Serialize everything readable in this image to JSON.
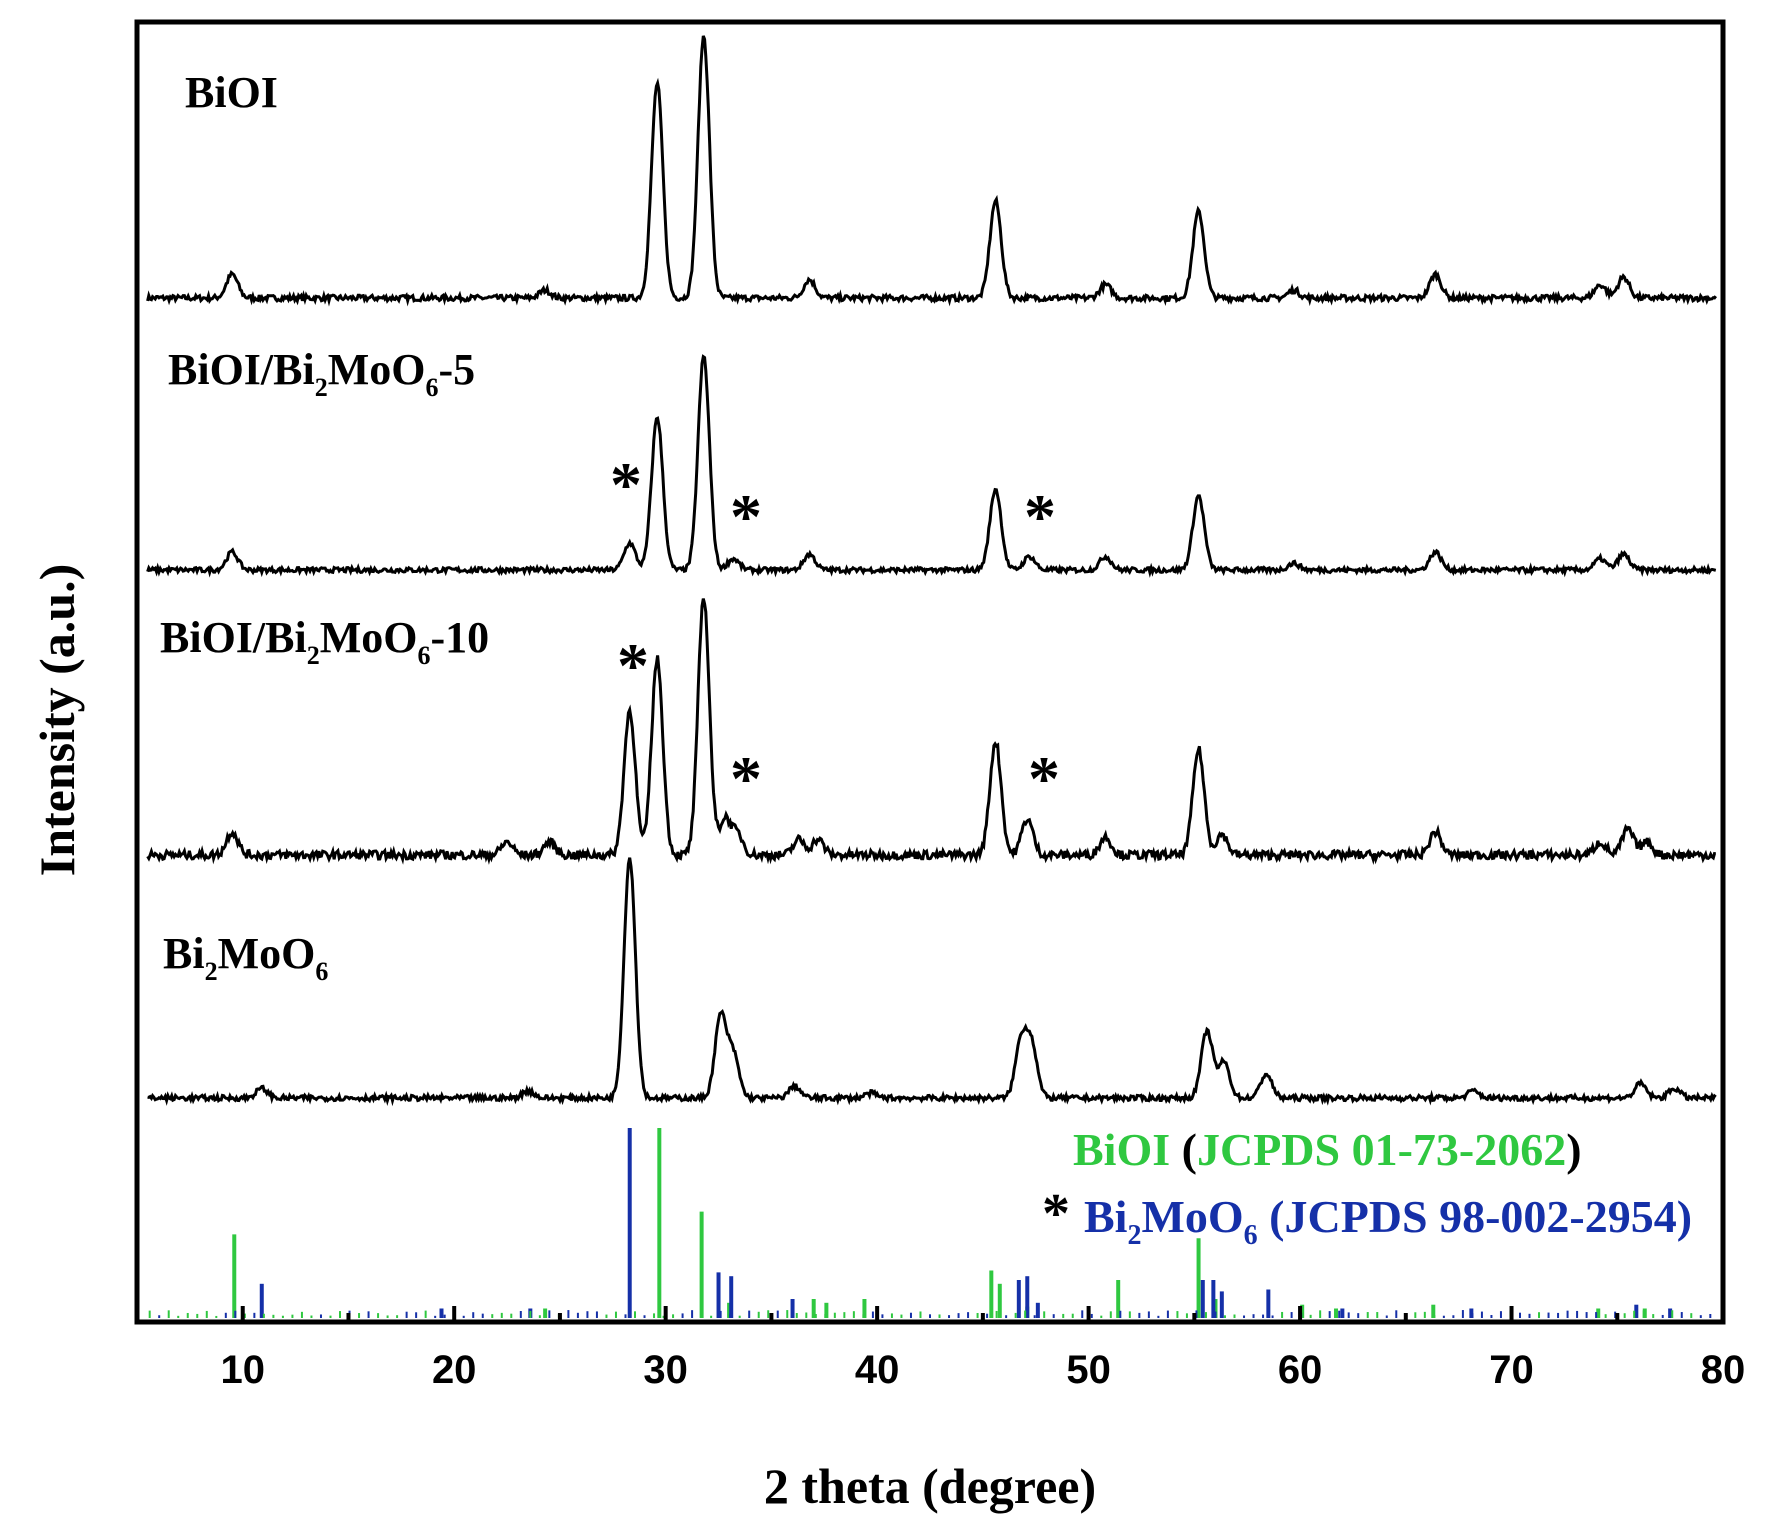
{
  "chart_data": {
    "type": "line",
    "xlabel": "2 theta (degree)",
    "ylabel": "Intensity (a.u.)",
    "xlim": [
      5,
      80
    ],
    "x_ticks": [
      10,
      20,
      30,
      40,
      50,
      60,
      70,
      80
    ],
    "y_ticks_shown": false,
    "grid": false,
    "legend_placement": "bottom-right",
    "series": [
      {
        "name_parts": [
          {
            "t": "BiOI"
          }
        ],
        "peaks": [
          [
            9.5,
            0.09
          ],
          [
            24.3,
            0.03
          ],
          [
            29.6,
            0.82
          ],
          [
            31.8,
            1.0
          ],
          [
            36.8,
            0.07
          ],
          [
            45.6,
            0.37
          ],
          [
            50.8,
            0.05
          ],
          [
            55.2,
            0.33
          ],
          [
            59.7,
            0.03
          ],
          [
            66.4,
            0.09
          ],
          [
            74.2,
            0.05
          ],
          [
            75.3,
            0.08
          ]
        ]
      },
      {
        "name_parts": [
          {
            "t": "BiOI/Bi"
          },
          {
            "t": "2",
            "sub": true
          },
          {
            "t": "MoO"
          },
          {
            "t": "6",
            "sub": true
          },
          {
            "t": "-5"
          }
        ],
        "peaks": [
          [
            9.5,
            0.08
          ],
          [
            28.3,
            0.12
          ],
          [
            29.6,
            0.68
          ],
          [
            31.8,
            0.95
          ],
          [
            33.2,
            0.05
          ],
          [
            36.8,
            0.07
          ],
          [
            45.6,
            0.36
          ],
          [
            47.2,
            0.06
          ],
          [
            50.8,
            0.06
          ],
          [
            55.2,
            0.33
          ],
          [
            59.7,
            0.03
          ],
          [
            66.4,
            0.08
          ],
          [
            74.2,
            0.05
          ],
          [
            75.3,
            0.07
          ]
        ]
      },
      {
        "name_parts": [
          {
            "t": "BiOI/Bi"
          },
          {
            "t": "2",
            "sub": true
          },
          {
            "t": "MoO"
          },
          {
            "t": "6",
            "sub": true
          },
          {
            "t": "-10"
          }
        ],
        "peaks": [
          [
            9.5,
            0.09
          ],
          [
            22.5,
            0.05
          ],
          [
            24.5,
            0.05
          ],
          [
            28.3,
            0.56
          ],
          [
            29.6,
            0.76
          ],
          [
            31.8,
            1.0
          ],
          [
            32.8,
            0.14
          ],
          [
            33.4,
            0.08
          ],
          [
            36.3,
            0.06
          ],
          [
            37.2,
            0.06
          ],
          [
            45.6,
            0.44
          ],
          [
            47.1,
            0.14
          ],
          [
            50.8,
            0.07
          ],
          [
            55.2,
            0.41
          ],
          [
            56.3,
            0.08
          ],
          [
            66.4,
            0.09
          ],
          [
            74.2,
            0.05
          ],
          [
            75.5,
            0.1
          ],
          [
            76.4,
            0.05
          ]
        ]
      },
      {
        "name_parts": [
          {
            "t": "Bi"
          },
          {
            "t": "2",
            "sub": true
          },
          {
            "t": "MoO"
          },
          {
            "t": "6",
            "sub": true
          }
        ],
        "peaks": [
          [
            10.9,
            0.04
          ],
          [
            23.5,
            0.03
          ],
          [
            28.3,
            1.0
          ],
          [
            32.6,
            0.34
          ],
          [
            33.2,
            0.18
          ],
          [
            36.1,
            0.05
          ],
          [
            39.7,
            0.02
          ],
          [
            46.8,
            0.23
          ],
          [
            47.3,
            0.22
          ],
          [
            55.6,
            0.28
          ],
          [
            56.4,
            0.15
          ],
          [
            58.4,
            0.1
          ],
          [
            68.2,
            0.03
          ],
          [
            76.1,
            0.06
          ],
          [
            77.7,
            0.04
          ]
        ]
      }
    ],
    "reference_lines": [
      {
        "label_prefix": "",
        "label_parts": [
          {
            "t": "BiOI",
            "c": "green"
          },
          {
            "t": " (",
            "c": "black"
          },
          {
            "t": "JCPDS 01-73-2062",
            "c": "green"
          },
          {
            "t": ")",
            "c": "black"
          }
        ],
        "color": "#2fc840",
        "lines": [
          [
            9.6,
            0.44
          ],
          [
            24.3,
            0.05
          ],
          [
            29.7,
            1.0
          ],
          [
            31.7,
            0.56
          ],
          [
            33.0,
            0.08
          ],
          [
            37.0,
            0.1
          ],
          [
            37.6,
            0.08
          ],
          [
            39.4,
            0.1
          ],
          [
            45.4,
            0.25
          ],
          [
            45.8,
            0.18
          ],
          [
            47.1,
            0.06
          ],
          [
            51.4,
            0.2
          ],
          [
            55.2,
            0.42
          ],
          [
            56.0,
            0.1
          ],
          [
            60.1,
            0.07
          ],
          [
            61.7,
            0.05
          ],
          [
            66.3,
            0.07
          ],
          [
            74.1,
            0.05
          ],
          [
            76.3,
            0.05
          ]
        ]
      },
      {
        "label_prefix": "*",
        "label_parts": [
          {
            "t": "Bi",
            "c": "blue"
          },
          {
            "t": "2",
            "c": "blue",
            "sub": true
          },
          {
            "t": "MoO",
            "c": "blue"
          },
          {
            "t": "6",
            "c": "blue",
            "sub": true
          },
          {
            "t": " (JCPDS 98-002-2954)",
            "c": "blue"
          }
        ],
        "color": "#1530a8",
        "lines": [
          [
            10.9,
            0.18
          ],
          [
            19.4,
            0.05
          ],
          [
            23.6,
            0.05
          ],
          [
            28.3,
            1.0
          ],
          [
            32.5,
            0.24
          ],
          [
            33.1,
            0.22
          ],
          [
            36.0,
            0.1
          ],
          [
            46.7,
            0.2
          ],
          [
            47.1,
            0.22
          ],
          [
            47.6,
            0.08
          ],
          [
            55.4,
            0.2
          ],
          [
            55.9,
            0.2
          ],
          [
            56.3,
            0.14
          ],
          [
            58.5,
            0.15
          ],
          [
            62.0,
            0.05
          ],
          [
            68.1,
            0.05
          ],
          [
            75.9,
            0.07
          ],
          [
            77.5,
            0.05
          ]
        ]
      }
    ],
    "star_markers": [
      {
        "series": 1,
        "x": 28.3
      },
      {
        "series": 1,
        "x": 33.6
      },
      {
        "series": 1,
        "x": 47.6
      },
      {
        "series": 2,
        "x": 28.6
      },
      {
        "series": 2,
        "x": 33.6
      },
      {
        "series": 2,
        "x": 48.0
      }
    ],
    "star_glyph": "*"
  }
}
